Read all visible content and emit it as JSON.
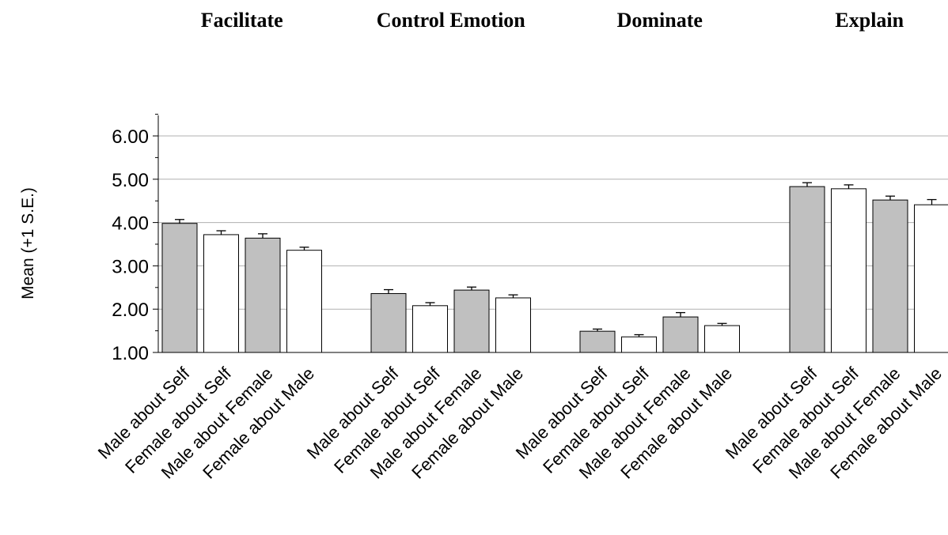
{
  "chart_data": {
    "type": "bar",
    "ylabel": "Mean (+1 S.E.)",
    "ylim": [
      1.0,
      6.5
    ],
    "yticks": [
      "1.00",
      "2.00",
      "3.00",
      "4.00",
      "5.00",
      "6.00"
    ],
    "grid": true,
    "categories": [
      "Male about Self",
      "Female about Self",
      "Male about Female",
      "Female about Male"
    ],
    "category_colors": [
      "#c0c0c0",
      "#ffffff",
      "#c0c0c0",
      "#ffffff"
    ],
    "groups": [
      {
        "name": "Facilitate",
        "values": [
          3.98,
          3.72,
          3.64,
          3.36
        ],
        "errors": [
          0.09,
          0.09,
          0.1,
          0.07
        ]
      },
      {
        "name": "Control Emotion",
        "values": [
          2.36,
          2.08,
          2.44,
          2.26
        ],
        "errors": [
          0.09,
          0.07,
          0.07,
          0.07
        ]
      },
      {
        "name": "Dominate",
        "values": [
          1.49,
          1.36,
          1.82,
          1.62
        ],
        "errors": [
          0.05,
          0.05,
          0.1,
          0.05
        ]
      },
      {
        "name": "Explain",
        "values": [
          4.83,
          4.78,
          4.52,
          4.41
        ],
        "errors": [
          0.09,
          0.09,
          0.09,
          0.12
        ]
      }
    ]
  }
}
